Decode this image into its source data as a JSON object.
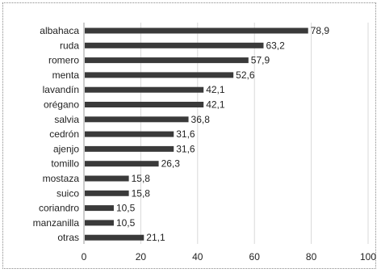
{
  "chart_data": {
    "type": "bar",
    "orientation": "horizontal",
    "title": "",
    "xlabel": "",
    "ylabel": "",
    "categories": [
      "albahaca",
      "ruda",
      "romero",
      "menta",
      "lavandín",
      "orégano",
      "salvia",
      "cedrón",
      "ajenjo",
      "tomillo",
      "mostaza",
      "suico",
      "coriandro",
      "manzanilla",
      "otras"
    ],
    "values": [
      78.9,
      63.2,
      57.9,
      52.6,
      42.1,
      42.1,
      36.8,
      31.6,
      31.6,
      26.3,
      15.8,
      15.8,
      10.5,
      10.5,
      21.1
    ],
    "value_labels": [
      "78,9",
      "63,2",
      "57,9",
      "52,6",
      "42,1",
      "42,1",
      "36,8",
      "31,6",
      "31,6",
      "26,3",
      "15,8",
      "15,8",
      "10,5",
      "10,5",
      "21,1"
    ],
    "xlim": [
      0,
      100
    ],
    "xticks": [
      0,
      20,
      40,
      60,
      80,
      100
    ],
    "xtick_labels": [
      "0",
      "20",
      "40",
      "60",
      "80",
      "100"
    ],
    "grid": "vertical",
    "legend": "none",
    "colors": {
      "bar": "#3a3a3a",
      "grid": "#d9d9d9",
      "text": "#222222"
    }
  }
}
